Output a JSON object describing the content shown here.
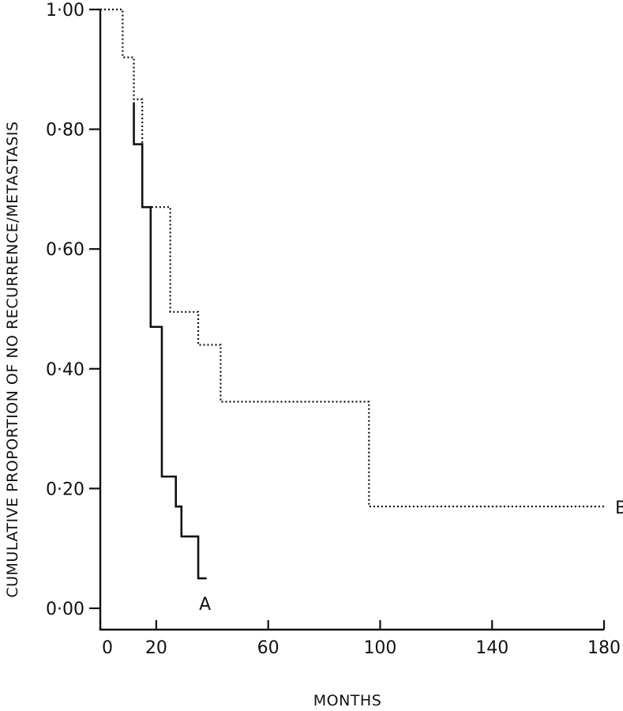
{
  "chart_data": {
    "type": "line",
    "step": true,
    "title": "",
    "xlabel": "MONTHS",
    "ylabel": "CUMULATIVE PROPORTION OF NO RECURRENCE/METASTASIS",
    "xlim": [
      0,
      180
    ],
    "ylim": [
      0,
      1
    ],
    "x_ticks": [
      {
        "value": 0,
        "label": "0"
      },
      {
        "value": 20,
        "label": "20"
      },
      {
        "value": 60,
        "label": "60"
      },
      {
        "value": 100,
        "label": "100"
      },
      {
        "value": 140,
        "label": "140"
      },
      {
        "value": 180,
        "label": "180"
      }
    ],
    "y_ticks": [
      {
        "value": 0,
        "label": "0·00"
      },
      {
        "value": 0.2,
        "label": "0·20"
      },
      {
        "value": 0.4,
        "label": "0·40"
      },
      {
        "value": 0.6,
        "label": "0·60"
      },
      {
        "value": 0.8,
        "label": "0·80"
      },
      {
        "value": 1,
        "label": "1·00"
      }
    ],
    "grid": false,
    "series": [
      {
        "name": "A",
        "style": "solid",
        "color": "#111111",
        "x": [
          12,
          15,
          18,
          22,
          27,
          29,
          35,
          38
        ],
        "y": [
          0.775,
          0.67,
          0.47,
          0.22,
          0.17,
          0.12,
          0.05,
          0.05
        ]
      },
      {
        "name": "B",
        "style": "dotted",
        "color": "#111111",
        "x": [
          0,
          8,
          12,
          15,
          25,
          35,
          43,
          96,
          180
        ],
        "y": [
          1.0,
          0.92,
          0.85,
          0.67,
          0.495,
          0.44,
          0.345,
          0.17,
          0.17
        ]
      }
    ]
  }
}
